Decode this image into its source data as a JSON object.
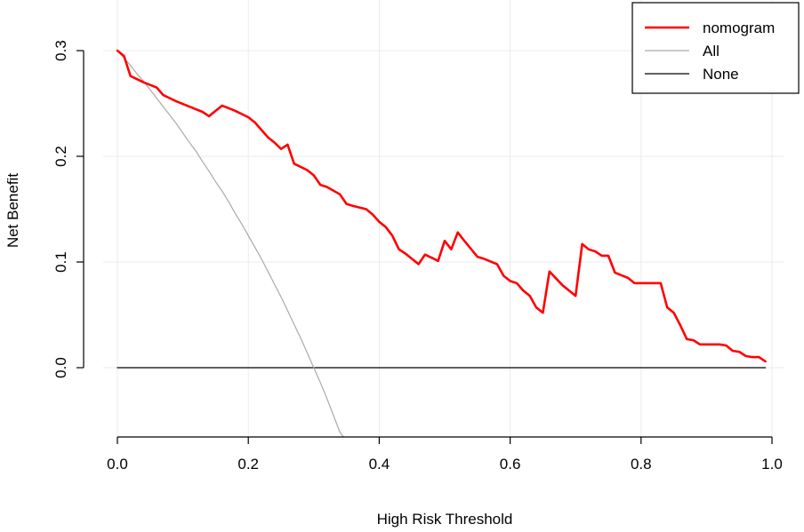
{
  "chart_data": {
    "type": "line",
    "title": "",
    "xlabel": "High Risk Threshold",
    "ylabel": "Net Benefit",
    "xlim": [
      0.0,
      1.0
    ],
    "ylim": [
      -0.065,
      0.31
    ],
    "x_ticks": [
      "0.0",
      "0.2",
      "0.4",
      "0.6",
      "0.8",
      "1.0"
    ],
    "x_tick_values": [
      0.0,
      0.2,
      0.4,
      0.6,
      0.8,
      1.0
    ],
    "y_ticks": [
      "0.0",
      "0.1",
      "0.2",
      "0.3"
    ],
    "y_tick_values": [
      0.0,
      0.1,
      0.2,
      0.3
    ],
    "grid": true,
    "legend_position": "top-right",
    "legend": [
      "nomogram",
      "All",
      "None"
    ],
    "series": [
      {
        "name": "nomogram",
        "color": "#ff0000",
        "x": [
          0.0,
          0.01,
          0.02,
          0.04,
          0.06,
          0.07,
          0.09,
          0.11,
          0.13,
          0.14,
          0.16,
          0.18,
          0.2,
          0.21,
          0.23,
          0.24,
          0.25,
          0.26,
          0.27,
          0.29,
          0.3,
          0.31,
          0.32,
          0.34,
          0.35,
          0.36,
          0.38,
          0.39,
          0.4,
          0.41,
          0.42,
          0.43,
          0.44,
          0.46,
          0.47,
          0.48,
          0.49,
          0.5,
          0.51,
          0.52,
          0.53,
          0.55,
          0.56,
          0.58,
          0.59,
          0.6,
          0.61,
          0.62,
          0.63,
          0.64,
          0.65,
          0.66,
          0.68,
          0.69,
          0.7,
          0.71,
          0.72,
          0.73,
          0.74,
          0.75,
          0.76,
          0.78,
          0.79,
          0.82,
          0.83,
          0.84,
          0.85,
          0.86,
          0.87,
          0.88,
          0.89,
          0.9,
          0.92,
          0.93,
          0.94,
          0.95,
          0.96,
          0.97,
          0.98,
          0.99
        ],
        "y": [
          0.3,
          0.295,
          0.276,
          0.27,
          0.265,
          0.258,
          0.252,
          0.247,
          0.242,
          0.238,
          0.248,
          0.243,
          0.237,
          0.232,
          0.218,
          0.213,
          0.207,
          0.211,
          0.193,
          0.187,
          0.182,
          0.173,
          0.171,
          0.164,
          0.155,
          0.153,
          0.15,
          0.145,
          0.138,
          0.133,
          0.125,
          0.112,
          0.108,
          0.098,
          0.107,
          0.104,
          0.101,
          0.12,
          0.112,
          0.128,
          0.12,
          0.105,
          0.103,
          0.098,
          0.087,
          0.082,
          0.08,
          0.073,
          0.068,
          0.057,
          0.052,
          0.091,
          0.078,
          0.073,
          0.068,
          0.117,
          0.112,
          0.11,
          0.106,
          0.106,
          0.09,
          0.085,
          0.08,
          0.08,
          0.08,
          0.057,
          0.052,
          0.04,
          0.027,
          0.026,
          0.022,
          0.022,
          0.022,
          0.021,
          0.016,
          0.015,
          0.011,
          0.01,
          0.01,
          0.006
        ]
      },
      {
        "name": "All",
        "color": "#aaaaaa",
        "x": [
          0.0,
          0.01,
          0.02,
          0.03,
          0.04,
          0.05,
          0.06,
          0.07,
          0.08,
          0.09,
          0.1,
          0.11,
          0.12,
          0.13,
          0.14,
          0.15,
          0.16,
          0.17,
          0.18,
          0.19,
          0.2,
          0.21,
          0.22,
          0.23,
          0.24,
          0.25,
          0.26,
          0.27,
          0.28,
          0.29,
          0.3,
          0.31,
          0.32,
          0.33,
          0.34,
          0.345
        ],
        "y": [
          0.3,
          0.293,
          0.286,
          0.278,
          0.271,
          0.263,
          0.255,
          0.247,
          0.239,
          0.231,
          0.222,
          0.213,
          0.205,
          0.195,
          0.186,
          0.176,
          0.167,
          0.157,
          0.146,
          0.136,
          0.125,
          0.114,
          0.103,
          0.091,
          0.079,
          0.067,
          0.054,
          0.041,
          0.028,
          0.014,
          0.0,
          -0.014,
          -0.029,
          -0.045,
          -0.061,
          -0.065
        ]
      },
      {
        "name": "None",
        "color": "#000000",
        "x": [
          0.0,
          0.99
        ],
        "y": [
          0.0,
          0.0
        ]
      }
    ]
  }
}
